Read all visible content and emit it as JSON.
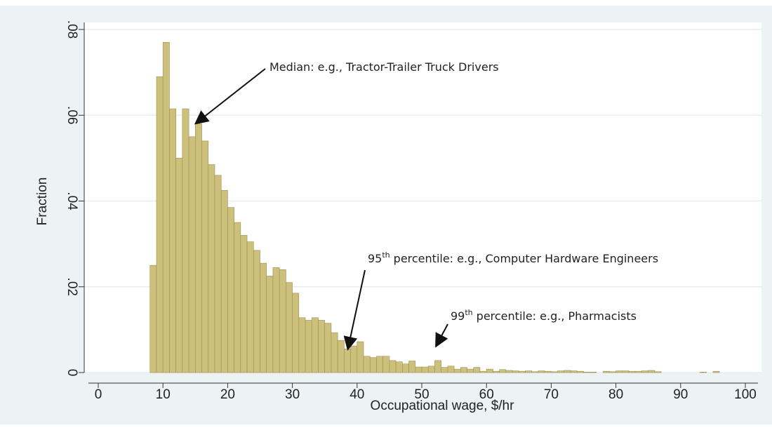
{
  "chart_data": {
    "type": "histogram",
    "xlabel": "Occupational wage, $/hr",
    "ylabel": "Fraction",
    "bins": [
      8,
      9,
      10,
      11,
      12,
      13,
      14,
      15,
      16,
      17,
      18,
      19,
      20,
      21,
      22,
      23,
      24,
      25,
      26,
      27,
      28,
      29,
      30,
      31,
      32,
      33,
      34,
      35,
      36,
      37,
      38,
      39,
      40,
      41,
      42,
      43,
      44,
      45,
      46,
      47,
      48,
      49,
      50,
      51,
      52,
      53,
      54,
      55,
      56,
      57,
      58,
      59,
      60,
      61,
      62,
      63,
      64,
      65,
      66,
      67,
      68,
      69,
      70,
      71,
      72,
      73,
      74,
      75,
      76,
      77,
      78,
      79,
      80,
      81,
      82,
      83,
      84,
      85,
      86,
      87,
      88,
      89,
      90,
      91,
      92,
      93,
      94,
      95,
      96,
      97
    ],
    "values": [
      0.025,
      0.069,
      0.077,
      0.0615,
      0.05,
      0.0615,
      0.055,
      0.058,
      0.054,
      0.0485,
      0.046,
      0.0425,
      0.0385,
      0.035,
      0.032,
      0.0305,
      0.0285,
      0.0255,
      0.0225,
      0.0245,
      0.024,
      0.021,
      0.0185,
      0.0128,
      0.0122,
      0.0128,
      0.0122,
      0.0115,
      0.0093,
      0.0075,
      0.0055,
      0.0062,
      0.0072,
      0.0038,
      0.0035,
      0.0038,
      0.0038,
      0.0028,
      0.0025,
      0.002,
      0.0027,
      0.0013,
      0.0013,
      0.0015,
      0.0028,
      0.0012,
      0.0015,
      0.0008,
      0.0012,
      0.0008,
      0.0012,
      0.0003,
      0.0008,
      0.0003,
      0.0007,
      0.0005,
      0.0004,
      0.0003,
      0.0004,
      0.0002,
      0.0004,
      0.0003,
      0.0002,
      0.0004,
      0.0005,
      0.0004,
      0.0003,
      0.0001,
      0.0001,
      0,
      0.0003,
      0.0002,
      0.0004,
      0.0004,
      0.0003,
      0.0003,
      0.0004,
      0.0005,
      0.0002,
      0,
      0,
      0,
      0,
      0,
      0,
      0.0001,
      0,
      0.0003,
      0
    ],
    "color": "#cdc07c",
    "edgecolor": "#9a9050",
    "xlim": [
      0,
      100
    ],
    "xticks": [
      0,
      10,
      20,
      30,
      40,
      50,
      60,
      70,
      80,
      90,
      100
    ],
    "ylim": [
      0,
      0.08
    ],
    "yticks": [
      0,
      {
        "value": 0.02,
        "label": ".02"
      },
      {
        "value": 0.04,
        "label": ".04"
      },
      {
        "value": 0.06,
        "label": ".06"
      },
      {
        "value": 0.08,
        "label": ".08"
      }
    ],
    "grid": true,
    "annotations": [
      {
        "text": "Median: e.g., Tractor-Trailer Truck Drivers"
      },
      {
        "number": "95",
        "suffix": "th",
        "text": "percentile: e.g., Computer Hardware Engineers"
      },
      {
        "number": "99",
        "suffix": "th",
        "text": "percentile: e.g., Pharmacists"
      }
    ]
  }
}
